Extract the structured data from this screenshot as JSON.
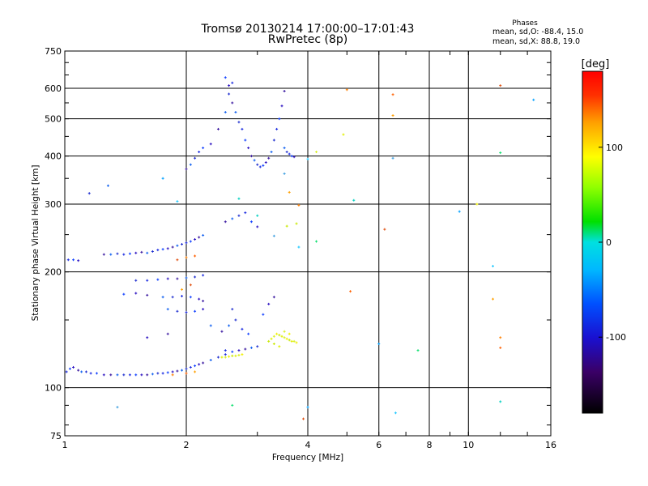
{
  "chart_data": {
    "type": "scatter",
    "title": "Tromsø 20130214 17:00:00–17:01:43",
    "subtitle": "RwPretec (8p)",
    "xlabel": "Frequency [MHz]",
    "ylabel": "Stationary phase Virtual Height [km]",
    "x_scale": "log",
    "y_scale": "log",
    "xlim": [
      1,
      16
    ],
    "ylim": [
      75,
      750
    ],
    "grid": true,
    "x_ticks": [
      {
        "value": 1,
        "label": "1"
      },
      {
        "value": 2,
        "label": "2"
      },
      {
        "value": 4,
        "label": "4"
      },
      {
        "value": 6,
        "label": "6"
      },
      {
        "value": 8,
        "label": "8"
      },
      {
        "value": 10,
        "label": "10"
      },
      {
        "value": 16,
        "label": "16"
      }
    ],
    "y_ticks": [
      {
        "value": 75,
        "label": "75"
      },
      {
        "value": 100,
        "label": "100"
      },
      {
        "value": 200,
        "label": "200"
      },
      {
        "value": 300,
        "label": "300"
      },
      {
        "value": 400,
        "label": "400"
      },
      {
        "value": 500,
        "label": "500"
      },
      {
        "value": 600,
        "label": "600"
      },
      {
        "value": 750,
        "label": "750"
      }
    ],
    "phases": {
      "title": "Phases",
      "line_o": "mean, sd,O: -88.4, 15.0",
      "line_x": "mean, sd,X:  88.8, 19.0"
    },
    "colorbar": {
      "label": "[deg]",
      "range": [
        -180,
        180
      ],
      "placement": "right",
      "ticks": [
        {
          "value": 100,
          "label": "100"
        },
        {
          "value": 0,
          "label": "0"
        },
        {
          "value": -100,
          "label": "-100"
        }
      ]
    },
    "series": [
      {
        "points": [
          [
            1.01,
            110
          ],
          [
            1.03,
            112
          ],
          [
            1.05,
            113
          ],
          [
            1.08,
            111
          ],
          [
            1.1,
            110
          ],
          [
            1.13,
            110
          ],
          [
            1.16,
            109
          ],
          [
            1.2,
            109
          ],
          [
            1.25,
            108
          ],
          [
            1.3,
            108
          ],
          [
            1.35,
            108
          ],
          [
            1.4,
            108
          ],
          [
            1.45,
            108
          ],
          [
            1.5,
            108
          ],
          [
            1.55,
            108
          ],
          [
            1.6,
            108
          ],
          [
            1.65,
            108.5
          ],
          [
            1.7,
            109
          ],
          [
            1.75,
            109
          ],
          [
            1.8,
            109.5
          ],
          [
            1.85,
            110
          ],
          [
            1.9,
            110.5
          ],
          [
            1.95,
            111
          ],
          [
            2,
            112
          ],
          [
            2.05,
            113
          ],
          [
            2.1,
            114
          ],
          [
            2.15,
            115
          ],
          [
            2.2,
            116
          ],
          [
            2.3,
            118
          ],
          [
            2.4,
            120
          ],
          [
            2.5,
            122
          ],
          [
            2.6,
            124
          ],
          [
            2.7,
            125
          ],
          [
            2.8,
            126
          ],
          [
            2.9,
            127
          ],
          [
            3.0,
            128
          ],
          [
            1.02,
            215
          ],
          [
            1.05,
            215
          ],
          [
            1.08,
            214
          ],
          [
            1.25,
            222
          ],
          [
            1.3,
            222
          ],
          [
            1.35,
            223
          ],
          [
            1.4,
            222
          ],
          [
            1.45,
            223
          ],
          [
            1.5,
            224
          ],
          [
            1.55,
            225
          ],
          [
            1.6,
            224
          ],
          [
            1.65,
            226
          ],
          [
            1.7,
            228
          ],
          [
            1.75,
            229
          ],
          [
            1.8,
            230
          ],
          [
            1.85,
            232
          ],
          [
            1.9,
            234
          ],
          [
            1.95,
            236
          ],
          [
            2.0,
            238
          ],
          [
            2.05,
            240
          ],
          [
            2.1,
            243
          ],
          [
            2.15,
            246
          ],
          [
            2.2,
            249
          ],
          [
            1.5,
            190
          ],
          [
            1.6,
            190
          ],
          [
            1.7,
            191
          ],
          [
            1.8,
            192
          ],
          [
            1.9,
            192
          ],
          [
            2.0,
            193
          ],
          [
            2.1,
            194
          ],
          [
            2.2,
            196
          ],
          [
            1.4,
            175
          ],
          [
            1.5,
            176
          ],
          [
            1.6,
            174
          ],
          [
            1.75,
            172
          ],
          [
            1.85,
            172
          ],
          [
            1.95,
            173
          ],
          [
            2.05,
            172
          ],
          [
            2.15,
            170
          ],
          [
            2.2,
            168
          ],
          [
            1.8,
            160
          ],
          [
            1.9,
            158
          ],
          [
            2.0,
            157
          ],
          [
            2.1,
            158
          ],
          [
            2.2,
            160
          ],
          [
            2.0,
            370
          ],
          [
            2.05,
            380
          ],
          [
            2.1,
            395
          ],
          [
            2.15,
            410
          ],
          [
            2.2,
            420
          ],
          [
            2.3,
            430
          ],
          [
            2.4,
            470
          ],
          [
            2.5,
            520
          ],
          [
            2.55,
            580
          ],
          [
            2.6,
            620
          ],
          [
            2.5,
            640
          ],
          [
            2.55,
            610
          ],
          [
            2.6,
            550
          ],
          [
            2.65,
            520
          ],
          [
            2.7,
            490
          ],
          [
            2.75,
            470
          ],
          [
            2.8,
            440
          ],
          [
            2.85,
            420
          ],
          [
            2.9,
            400
          ],
          [
            2.95,
            390
          ],
          [
            3.0,
            380
          ],
          [
            3.05,
            375
          ],
          [
            3.1,
            378
          ],
          [
            3.15,
            385
          ],
          [
            3.2,
            395
          ],
          [
            3.25,
            410
          ],
          [
            3.3,
            440
          ],
          [
            3.35,
            470
          ],
          [
            3.4,
            500
          ],
          [
            3.45,
            540
          ],
          [
            3.5,
            590
          ],
          [
            3.5,
            420
          ],
          [
            3.55,
            410
          ],
          [
            3.6,
            405
          ],
          [
            3.65,
            400
          ],
          [
            3.7,
            398
          ],
          [
            2.5,
            270
          ],
          [
            2.6,
            275
          ],
          [
            2.7,
            280
          ],
          [
            2.8,
            285
          ],
          [
            2.9,
            270
          ],
          [
            3.0,
            262
          ],
          [
            2.45,
            140
          ],
          [
            2.55,
            145
          ],
          [
            2.65,
            150
          ],
          [
            2.75,
            142
          ],
          [
            2.85,
            138
          ],
          [
            1.6,
            135
          ],
          [
            1.8,
            138
          ],
          [
            2.3,
            145
          ],
          [
            2.6,
            160
          ],
          [
            2.5,
            125
          ],
          [
            3.1,
            155
          ],
          [
            3.2,
            165
          ],
          [
            3.3,
            172
          ],
          [
            1.28,
            335
          ],
          [
            1.15,
            320
          ]
        ]
      },
      {
        "points": [
          [
            2.45,
            120
          ],
          [
            2.5,
            120
          ],
          [
            2.55,
            120.5
          ],
          [
            2.6,
            121
          ],
          [
            2.65,
            121
          ],
          [
            2.7,
            121.5
          ],
          [
            2.75,
            122
          ],
          [
            3.2,
            132
          ],
          [
            3.25,
            134
          ],
          [
            3.3,
            136
          ],
          [
            3.35,
            138
          ],
          [
            3.4,
            137
          ],
          [
            3.45,
            136
          ],
          [
            3.5,
            135
          ],
          [
            3.55,
            134
          ],
          [
            3.6,
            133
          ],
          [
            3.65,
            132
          ],
          [
            3.7,
            132
          ],
          [
            3.75,
            131
          ],
          [
            3.3,
            130
          ],
          [
            3.4,
            128
          ],
          [
            3.5,
            140
          ],
          [
            3.6,
            138
          ],
          [
            3.75,
            267
          ],
          [
            4.9,
            455
          ],
          [
            4.2,
            410
          ],
          [
            10.5,
            300
          ],
          [
            3.55,
            263
          ]
        ]
      },
      {
        "points": [
          [
            1.85,
            108
          ],
          [
            2.0,
            109
          ],
          [
            2.1,
            110
          ],
          [
            1.9,
            215
          ],
          [
            2.0,
            218
          ],
          [
            2.1,
            220
          ],
          [
            1.95,
            180
          ],
          [
            2.05,
            185
          ],
          [
            5.0,
            595
          ],
          [
            6.5,
            578
          ],
          [
            6.5,
            510
          ],
          [
            12.0,
            610
          ],
          [
            12.0,
            135
          ],
          [
            12.0,
            127
          ],
          [
            11.5,
            170
          ],
          [
            6.2,
            258
          ],
          [
            3.8,
            298
          ],
          [
            5.1,
            178
          ],
          [
            3.6,
            322
          ],
          [
            3.9,
            83
          ]
        ]
      },
      {
        "points": [
          [
            1.75,
            350
          ],
          [
            1.9,
            305
          ],
          [
            2.7,
            310
          ],
          [
            3.5,
            360
          ],
          [
            12,
            408
          ],
          [
            14.5,
            560
          ],
          [
            4.0,
            393
          ],
          [
            5.2,
            307
          ],
          [
            6.5,
            395
          ],
          [
            4.2,
            240
          ],
          [
            9.5,
            287
          ],
          [
            11.5,
            207
          ],
          [
            12,
            92
          ],
          [
            1.35,
            89
          ],
          [
            2.6,
            90
          ],
          [
            4.0,
            89
          ],
          [
            6.6,
            86
          ],
          [
            3.0,
            280
          ],
          [
            3.3,
            248
          ],
          [
            7.5,
            125
          ],
          [
            6.0,
            130
          ],
          [
            3.8,
            232
          ]
        ]
      }
    ]
  }
}
